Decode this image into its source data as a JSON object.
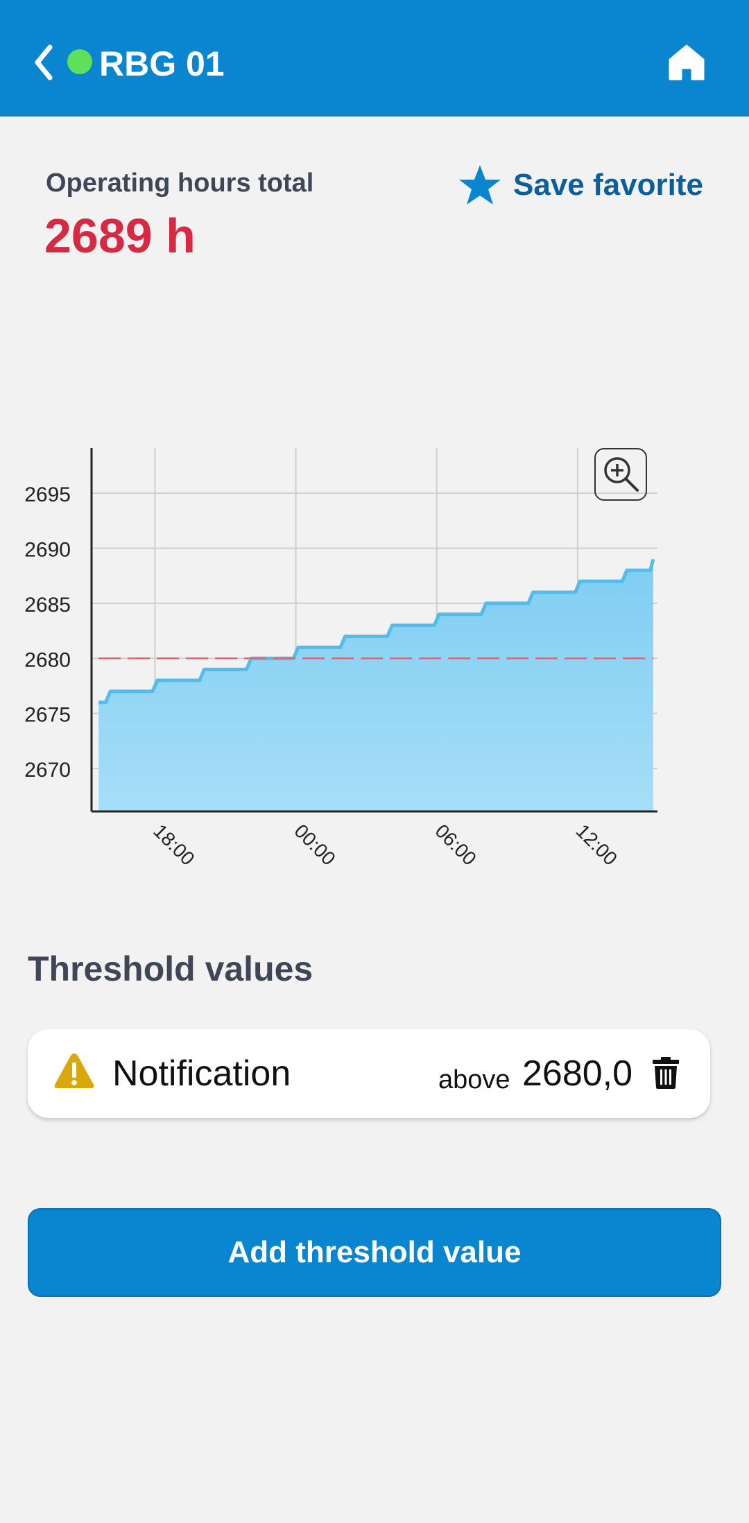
{
  "appbar": {
    "title": "RBG 01",
    "back_icon": "chevron-left-icon",
    "home_icon": "home-icon",
    "status_color": "#5fe05b",
    "background": "#0a86d0"
  },
  "metric": {
    "label": "Operating hours total",
    "value": "2689 h",
    "value_color": "#d72941"
  },
  "favorite": {
    "label": "Save favorite",
    "icon": "star-icon"
  },
  "zoom": {
    "icon": "zoom-in-icon"
  },
  "chart_data": {
    "type": "area",
    "x": [
      0.0,
      0.1,
      0.3,
      0.5,
      1.3,
      1.5,
      2.3,
      2.5,
      3.3,
      3.5,
      4.3,
      4.5,
      5.3,
      5.5,
      6.3,
      6.5,
      7.3,
      7.5,
      8.3,
      8.5,
      9.3,
      9.5,
      10.3,
      10.5,
      11.3,
      11.5,
      12.3,
      12.5,
      13.3,
      13.5,
      14.3,
      14.5,
      15.3,
      15.5,
      16.3,
      16.5,
      17.3,
      17.5,
      18.3,
      18.5,
      19.3,
      19.5,
      20.3,
      20.5,
      21.3,
      21.5,
      22.3,
      22.5,
      23.3,
      23.5,
      23.62
    ],
    "y": [
      2676,
      2676,
      2676,
      2677,
      2677,
      2677,
      2677,
      2678,
      2678,
      2678,
      2678,
      2679,
      2679,
      2679,
      2679,
      2680,
      2680,
      2680,
      2680,
      2681,
      2681,
      2681,
      2681,
      2682,
      2682,
      2682,
      2682,
      2683,
      2683,
      2683,
      2683,
      2684,
      2684,
      2684,
      2684,
      2685,
      2685,
      2685,
      2685,
      2686,
      2686,
      2686,
      2686,
      2687,
      2687,
      2687,
      2687,
      2688,
      2688,
      2688,
      2689
    ],
    "x_ticks": [
      {
        "x": 2.4,
        "label": "18:00"
      },
      {
        "x": 8.4,
        "label": "00:00"
      },
      {
        "x": 14.4,
        "label": "06:00"
      },
      {
        "x": 20.4,
        "label": "12:00"
      }
    ],
    "yticks": [
      2670,
      2675,
      2680,
      2685,
      2690,
      2695
    ],
    "xlim": [
      -0.3,
      23.8
    ],
    "ylim": [
      2666.1,
      2699.1
    ],
    "threshold": 2680,
    "grid": true,
    "fill_color": "#8dd3f6",
    "line_color": "#55bce9",
    "threshold_color": "#d36b76"
  },
  "thresholds": {
    "title": "Threshold values",
    "items": [
      {
        "icon": "warning-icon",
        "label": "Notification",
        "condition": "above",
        "value": "2680,0",
        "delete_icon": "trash-icon"
      }
    ]
  },
  "add_button": {
    "label": "Add threshold value"
  }
}
